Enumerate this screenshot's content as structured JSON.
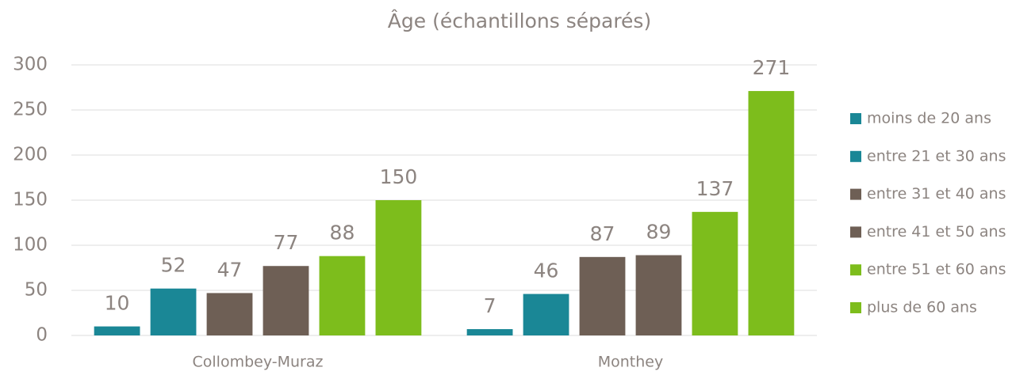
{
  "chart_data": {
    "type": "bar",
    "title": "Âge (échantillons séparés)",
    "categories": [
      "Collombey-Muraz",
      "Monthey"
    ],
    "series": [
      {
        "name": "moins de 20 ans",
        "color": "#1a8796",
        "values": [
          10,
          7
        ]
      },
      {
        "name": "entre 21 et 30 ans",
        "color": "#1a8796",
        "values": [
          52,
          46
        ]
      },
      {
        "name": "entre 31 et 40 ans",
        "color": "#6e5f55",
        "values": [
          47,
          87
        ]
      },
      {
        "name": "entre 41 et 50 ans",
        "color": "#6e5f55",
        "values": [
          77,
          89
        ]
      },
      {
        "name": "entre 51 et 60 ans",
        "color": "#7dbd1c",
        "values": [
          88,
          137
        ]
      },
      {
        "name": "plus de 60 ans",
        "color": "#7dbd1c",
        "values": [
          150,
          271
        ]
      }
    ],
    "ylim": [
      0,
      300
    ],
    "yticks": [
      0,
      50,
      100,
      150,
      200,
      250,
      300
    ],
    "grid": true,
    "legend": "right"
  }
}
